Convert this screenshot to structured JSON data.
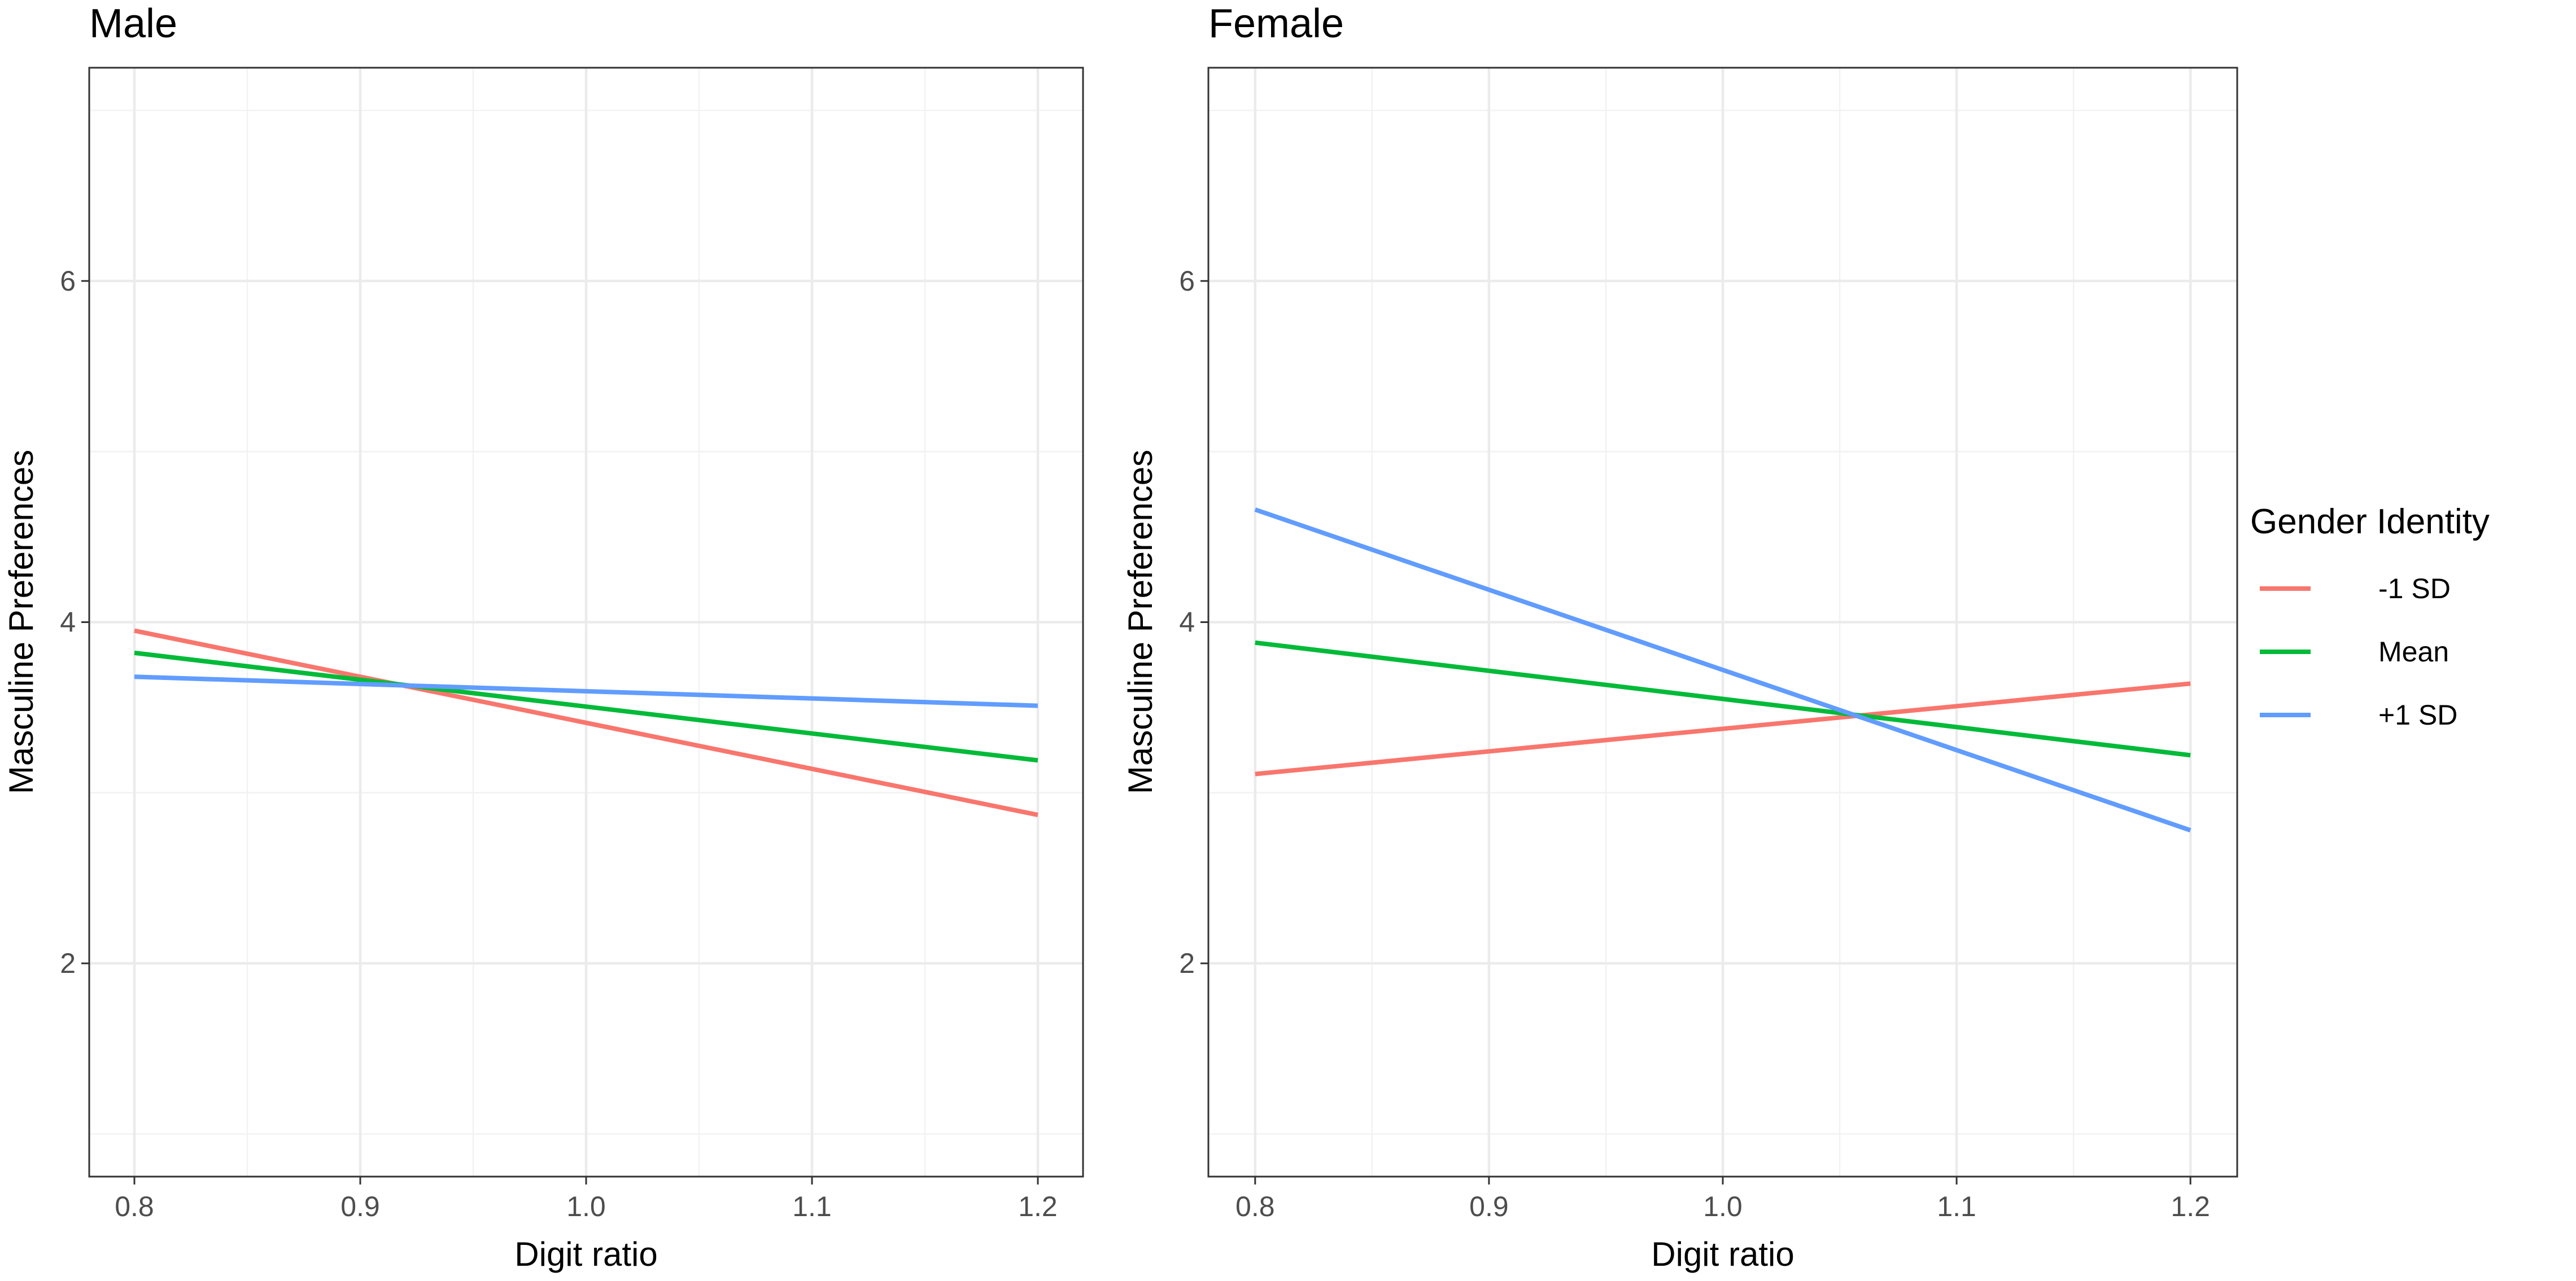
{
  "chart_data": {
    "type": "line",
    "legend": {
      "title": "Gender Identity",
      "position": "right",
      "entries": [
        {
          "label": "-1 SD",
          "color": "#F8766D"
        },
        {
          "label": "Mean",
          "color": "#00BA38"
        },
        {
          "label": "+1 SD",
          "color": "#619CFF"
        }
      ]
    },
    "xlabel": "Digit ratio",
    "ylabel": "Masculine Preferences",
    "xlim": [
      0.78,
      1.22
    ],
    "ylim": [
      0.75,
      7.25
    ],
    "x_major_ticks": [
      {
        "value": 0.8,
        "label": "0.8"
      },
      {
        "value": 0.9,
        "label": "0.9"
      },
      {
        "value": 1.0,
        "label": "1.0"
      },
      {
        "value": 1.1,
        "label": "1.1"
      },
      {
        "value": 1.2,
        "label": "1.2"
      }
    ],
    "x_minor_ticks": [
      0.85,
      0.95,
      1.05,
      1.15
    ],
    "y_major_ticks": [
      {
        "value": 2,
        "label": "2"
      },
      {
        "value": 4,
        "label": "4"
      },
      {
        "value": 6,
        "label": "6"
      }
    ],
    "y_minor_ticks": [
      1,
      3,
      5,
      7
    ],
    "grid": true,
    "panels": [
      {
        "title": "Male",
        "series": [
          {
            "name": "-1 SD",
            "color": "#F8766D",
            "x": [
              0.8,
              1.2
            ],
            "y": [
              3.95,
              2.87
            ]
          },
          {
            "name": "Mean",
            "color": "#00BA38",
            "x": [
              0.8,
              1.2
            ],
            "y": [
              3.82,
              3.19
            ]
          },
          {
            "name": "+1 SD",
            "color": "#619CFF",
            "x": [
              0.8,
              1.2
            ],
            "y": [
              3.68,
              3.51
            ]
          }
        ]
      },
      {
        "title": "Female",
        "series": [
          {
            "name": "-1 SD",
            "color": "#F8766D",
            "x": [
              0.8,
              1.2
            ],
            "y": [
              3.11,
              3.64
            ]
          },
          {
            "name": "Mean",
            "color": "#00BA38",
            "x": [
              0.8,
              1.2
            ],
            "y": [
              3.88,
              3.22
            ]
          },
          {
            "name": "+1 SD",
            "color": "#619CFF",
            "x": [
              0.8,
              1.2
            ],
            "y": [
              4.66,
              2.78
            ]
          }
        ]
      }
    ]
  }
}
